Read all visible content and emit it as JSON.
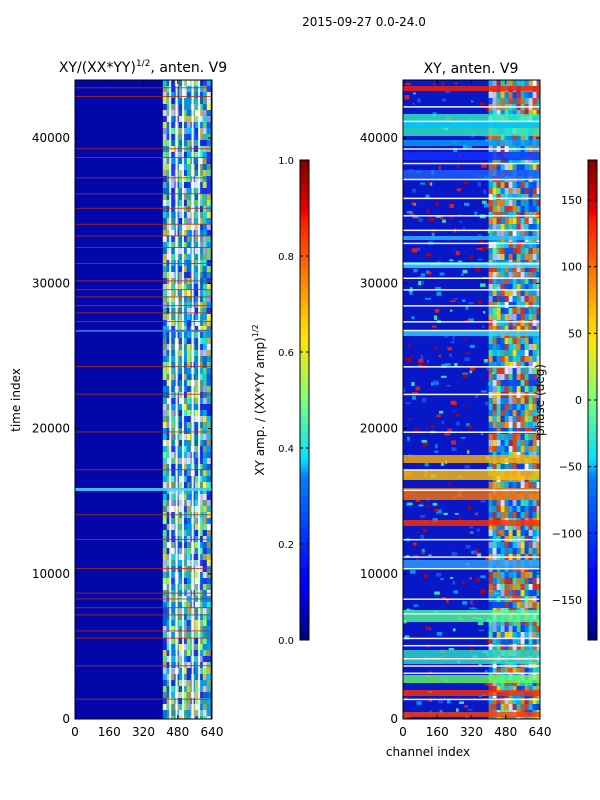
{
  "suptitle": "2015-09-27 0.0-24.0",
  "chart_data": [
    {
      "type": "heatmap",
      "title_prefix": "XY/(XX*YY)",
      "title_exponent": "1/2",
      "title_suffix": ", anten. V9",
      "xlabel": "",
      "ylabel": "time index",
      "xlim": [
        0,
        640
      ],
      "ylim": [
        0,
        44000
      ],
      "xticks": [
        0,
        160,
        320,
        480,
        640
      ],
      "yticks": [
        0,
        10000,
        20000,
        30000,
        40000
      ],
      "colormap": "jet",
      "colorbar": {
        "label": "XY amp. / (XX*YY amp)",
        "label_exponent": "1/2",
        "range": [
          0.0,
          1.0
        ],
        "ticks": [
          "0.0",
          "0.2",
          "0.4",
          "0.6",
          "0.8",
          "1.0"
        ],
        "tick_values": [
          0.0,
          0.2,
          0.4,
          0.6,
          0.8,
          1.0
        ]
      },
      "bright_band_channels": [
        [
          410,
          620
        ]
      ],
      "flagged_rows": [
        1400,
        3700,
        5600,
        6100,
        7200,
        7700,
        8300,
        8700,
        10400,
        12400,
        14100,
        15900,
        17200,
        19800,
        22400,
        24300,
        26800,
        27400,
        28000,
        28500,
        29100,
        29600,
        30200,
        31400,
        32500,
        33300,
        34100,
        35200,
        36200,
        37300,
        38700,
        39300,
        42900,
        43500
      ]
    },
    {
      "type": "heatmap",
      "title": "XY, anten. V9",
      "xlabel": "channel index",
      "ylabel": "",
      "xlim": [
        0,
        640
      ],
      "ylim": [
        0,
        44000
      ],
      "xticks": [
        0,
        160,
        320,
        480,
        640
      ],
      "yticks": [
        0,
        10000,
        20000,
        30000,
        40000
      ],
      "colormap": "jet",
      "colorbar": {
        "label": "phase (deg)",
        "range": [
          -180,
          180
        ],
        "ticks": [
          "−150",
          "−100",
          "−50",
          "0",
          "50",
          "100",
          "150"
        ],
        "tick_values": [
          -150,
          -100,
          -50,
          0,
          50,
          100,
          150
        ]
      },
      "bright_band_channels": [
        [
          400,
          640
        ]
      ],
      "flagged_rows": [
        1400,
        3200,
        3700,
        4200,
        5100,
        5600,
        7300,
        8300,
        10400,
        11200,
        12400,
        15800,
        17200,
        19800,
        22400,
        24300,
        26800,
        27400,
        28500,
        29600,
        30400,
        31400,
        32800,
        33700,
        34700,
        35900,
        37200,
        38300,
        39300,
        41200,
        42200
      ]
    }
  ]
}
